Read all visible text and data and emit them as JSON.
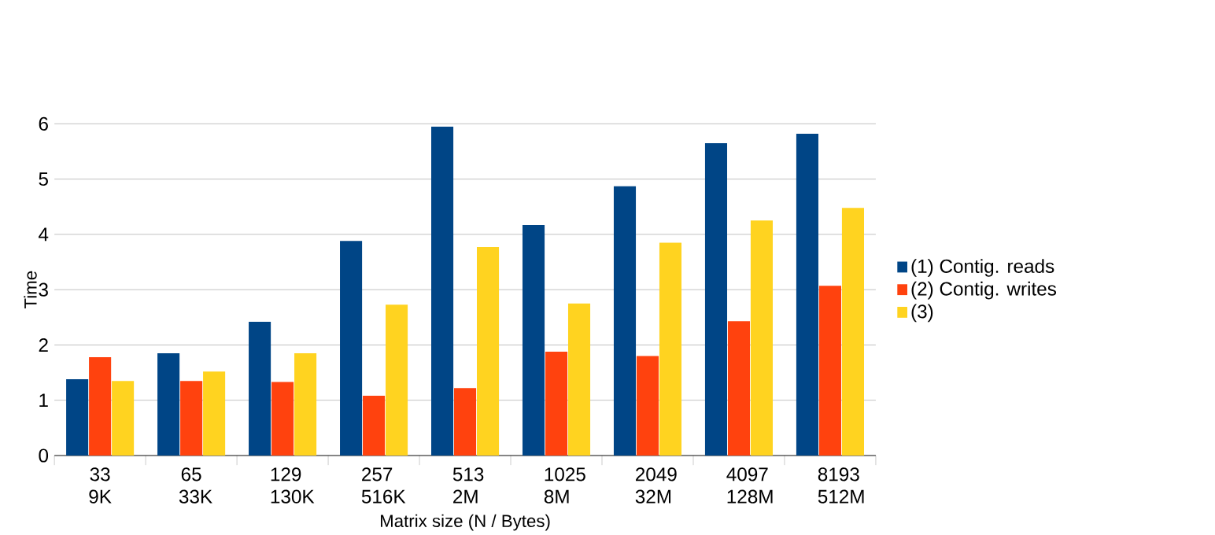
{
  "chart_data": {
    "type": "bar",
    "xlabel": "Matrix size (N / Bytes)",
    "ylabel": "Time",
    "categories": [
      "33 9K",
      "65 33K",
      "129 130K",
      "257 516K",
      "513 2M",
      "1025 8M",
      "2049 32M",
      "4097 128M",
      "8193 512M"
    ],
    "series": [
      {
        "name": "(1) Contig. reads",
        "color": "#004586",
        "values": [
          1.38,
          1.85,
          2.42,
          3.88,
          5.95,
          4.17,
          4.87,
          5.65,
          5.82
        ]
      },
      {
        "name": "(2) Contig. writes",
        "color": "#ff420e",
        "values": [
          1.78,
          1.35,
          1.33,
          1.08,
          1.22,
          1.88,
          1.8,
          2.43,
          3.07
        ]
      },
      {
        "name": "(3)",
        "color": "#ffd320",
        "values": [
          1.35,
          1.52,
          1.85,
          2.73,
          3.77,
          2.75,
          3.85,
          4.25,
          4.48
        ]
      }
    ],
    "ylim": [
      0,
      6
    ],
    "yticks": [
      0,
      1,
      2,
      3,
      4,
      5,
      6
    ],
    "grid": "y",
    "legend": "right"
  }
}
